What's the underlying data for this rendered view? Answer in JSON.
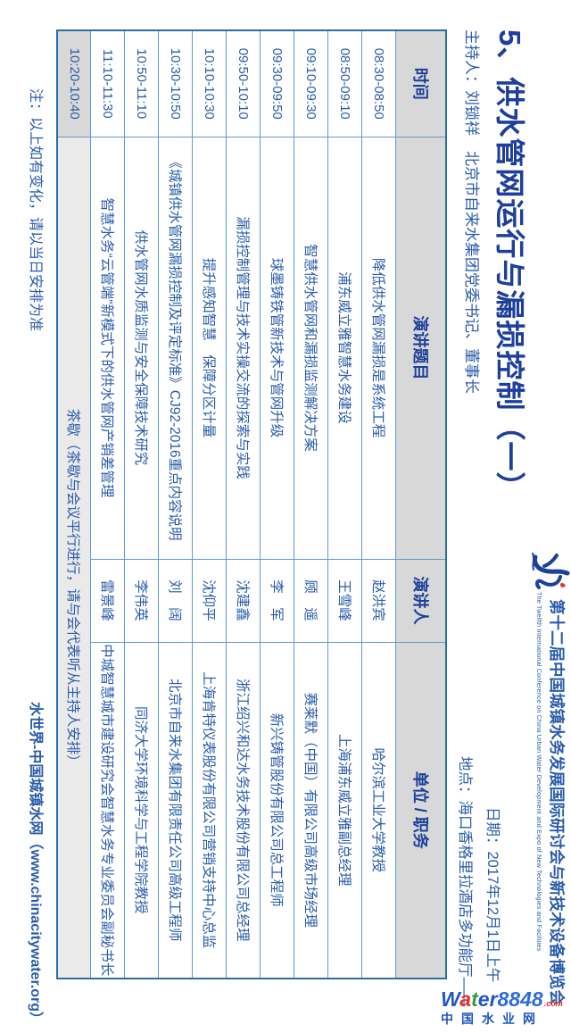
{
  "header": {
    "session_title": "5、供水管网运行与漏损控制（一）",
    "host_line": "主持人：刘锁祥　北京市自来水集团党委书记、董事长",
    "conference_name_zh": "第十二届中国城镇水务发展国际研讨会与新技术设备博览会",
    "conference_name_en": "The Twelfth International Conference on China Urban Water Development and Expo of New Technologies and Facilities",
    "date_line": "日期：2017年12月1日上午",
    "venue_line": "地点：海口香格里拉酒店多功能厅——"
  },
  "table": {
    "headers": [
      "时间",
      "演讲题目",
      "演讲人",
      "单位 / 职务"
    ],
    "rows": [
      {
        "time": "08:30-08:50",
        "title": "降低供水管网漏损是系统工程",
        "speaker": "赵洪宾",
        "org": "哈尔滨工业大学教授"
      },
      {
        "time": "08:50-09:10",
        "title": "浦东威立雅智慧水务建设",
        "speaker": "王雪峰",
        "org": "上海浦东威立雅副总经理"
      },
      {
        "time": "09:10-09:30",
        "title": "智慧供水管网和漏损监测解决方案",
        "speaker": "顾　遥",
        "org": "赛莱默（中国）有限公司高级市场经理"
      },
      {
        "time": "09:30-09:50",
        "title": "球墨铸铁管新技术与管网升级",
        "speaker": "李　军",
        "org": "新兴铸管股份有限公司总工程师"
      },
      {
        "time": "09:50-10:10",
        "title": "漏损控制管理与技术实操交流的探索与实践",
        "speaker": "沈建鑫",
        "org": "浙江绍兴和达水务技术股份有限公司总经理"
      },
      {
        "time": "10:10-10:30",
        "title": "提升感知智慧　保障分区计量",
        "speaker": "沈仰平",
        "org": "上海肯特仪表股份有限公司营销支持中心总监"
      },
      {
        "time": "10:30-10:50",
        "title": "《城镇供水管网漏损控制及评定标准》CJ92-2016重点内容说明",
        "speaker": "刘　阔",
        "org": "北京市自来水集团有限责任公司高级工程师"
      },
      {
        "time": "10:50-11:10",
        "title": "供水管网水质监测与安全保障技术研究",
        "speaker": "李伟英",
        "org": "同济大学环境科学与工程学院教授"
      },
      {
        "time": "11:10-11:30",
        "title": "智慧水务“云管端”新模式下的供水管网产销差管理",
        "speaker": "雷景峰",
        "org": "中城智慧城市建设研究会智慧水务专业委员会副秘书长"
      }
    ],
    "tea_break": {
      "time": "10:20-10:40",
      "text": "茶歇（茶歇与会议平行进行，请与会代表听从主持人安排）"
    }
  },
  "footer": {
    "note": "注：以上如有变化，请以当日安排为准",
    "site": "水世界-中国城镇水网（www.chinacitywater.org）"
  },
  "watermark": {
    "brand_letters": [
      {
        "ch": "W",
        "color": "#2057c0"
      },
      {
        "ch": "a",
        "color": "#e2312a"
      },
      {
        "ch": "t",
        "color": "#2f9e3c"
      },
      {
        "ch": "e",
        "color": "#2057c0"
      },
      {
        "ch": "r",
        "color": "#2057c0"
      },
      {
        "ch": "8848",
        "color": "#2f6bd8"
      }
    ],
    "suffix": ".com",
    "subtitle": "中国水业网"
  },
  "colors": {
    "title_navy": "#1d3f9b",
    "body_blue": "#2a5caa",
    "border_light": "#5b9bd5",
    "border_outer": "#2e6da4",
    "header_gray": "#d8d8d8",
    "teacell_gray": "#eaeaea",
    "wm_red": "#e2312a",
    "wm_green": "#2f9e3c",
    "wm_blue": "#2057c0"
  }
}
